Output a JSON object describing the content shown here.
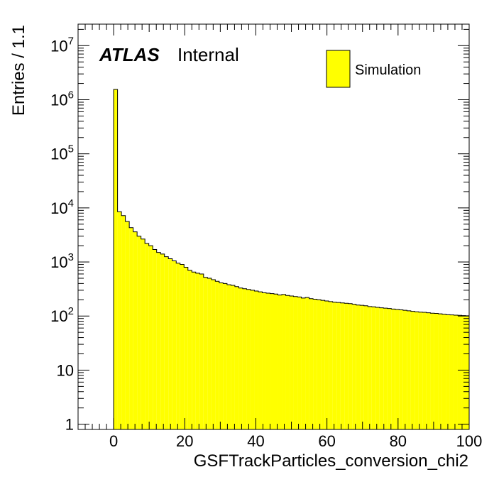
{
  "labels": {
    "atlas": "ATLAS",
    "internal": "Internal"
  },
  "legend": {
    "entry": "Simulation"
  },
  "colors": {
    "fill": "#ffff00",
    "line": "#000000"
  },
  "chart_data": {
    "type": "histogram",
    "title": "",
    "xlabel": "GSFTrackParticles_conversion_chi2",
    "ylabel": "Entries / 1.1",
    "xlim": [
      -10,
      100
    ],
    "ylim": [
      0.8,
      25000000
    ],
    "yscale": "log",
    "grid": false,
    "legend_position": "top-right",
    "bin_width": 1.1,
    "x_start": 0,
    "x_ticks": [
      {
        "value": 0,
        "label": "0"
      },
      {
        "value": 20,
        "label": "20"
      },
      {
        "value": 40,
        "label": "40"
      },
      {
        "value": 60,
        "label": "60"
      },
      {
        "value": 80,
        "label": "80"
      },
      {
        "value": 100,
        "label": "100"
      }
    ],
    "y_ticks": [
      {
        "value": 1,
        "base": "1",
        "exp": ""
      },
      {
        "value": 10,
        "base": "10",
        "exp": ""
      },
      {
        "value": 100,
        "base": "10",
        "exp": "2"
      },
      {
        "value": 1000,
        "base": "10",
        "exp": "3"
      },
      {
        "value": 10000,
        "base": "10",
        "exp": "4"
      },
      {
        "value": 100000,
        "base": "10",
        "exp": "5"
      },
      {
        "value": 1000000,
        "base": "10",
        "exp": "6"
      },
      {
        "value": 10000000,
        "base": "10",
        "exp": "7"
      }
    ],
    "series": [
      {
        "name": "Simulation",
        "values": [
          1550000,
          8500,
          7200,
          5600,
          4300,
          3600,
          3000,
          2650,
          2200,
          2000,
          1700,
          1500,
          1400,
          1250,
          1150,
          1050,
          950,
          900,
          800,
          700,
          650,
          620,
          600,
          520,
          500,
          470,
          440,
          410,
          400,
          380,
          370,
          350,
          330,
          320,
          310,
          300,
          290,
          280,
          270,
          265,
          260,
          255,
          245,
          250,
          240,
          235,
          230,
          225,
          215,
          220,
          210,
          205,
          200,
          195,
          190,
          185,
          180,
          178,
          175,
          172,
          170,
          165,
          160,
          158,
          155,
          150,
          148,
          145,
          142,
          140,
          138,
          135,
          132,
          130,
          128,
          125,
          122,
          120,
          118,
          117,
          115,
          113,
          112,
          110,
          108,
          106,
          105,
          104,
          103,
          102,
          101
        ]
      }
    ]
  }
}
